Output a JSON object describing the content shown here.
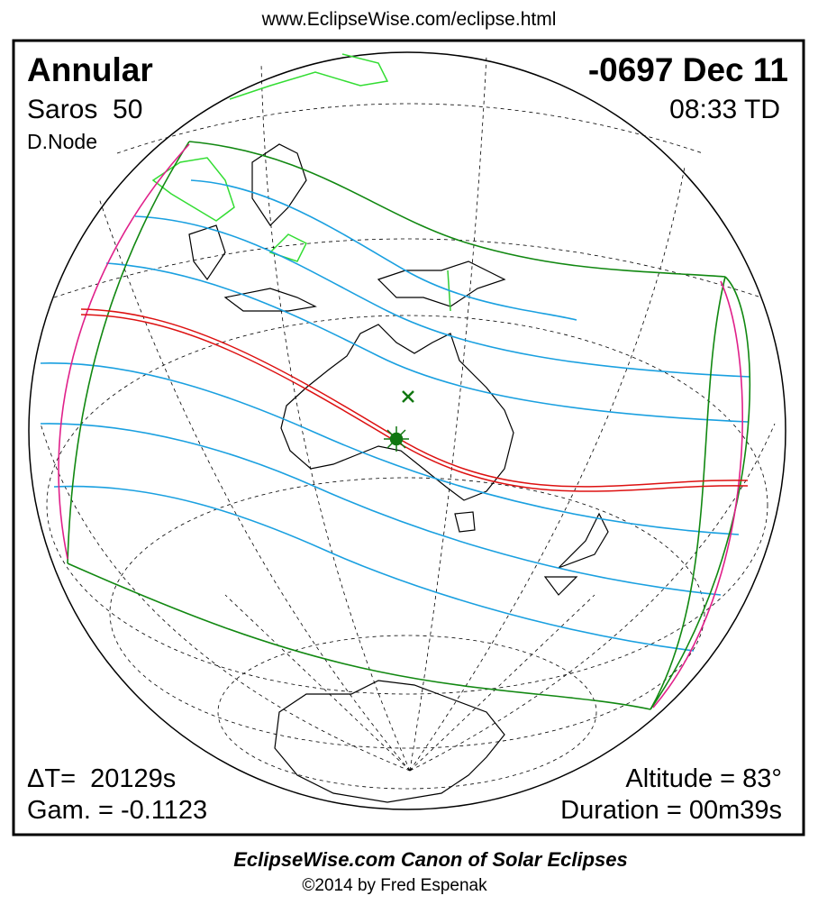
{
  "header": {
    "url": "www.EclipseWise.com/eclipse.html"
  },
  "title": {
    "type": "Annular",
    "saros": "Saros  50",
    "node": "D.Node",
    "date": "-0697 Dec 11",
    "time": "08:33 TD"
  },
  "stats": {
    "delta_t": "ΔT=  20129s",
    "gamma": "Gam. = -0.1123",
    "altitude": "Altitude = 83°",
    "duration": "Duration = 00m39s"
  },
  "footer": {
    "canon": "EclipseWise.com Canon of Solar Eclipses",
    "copyright": "©2014 by Fred Espenak"
  }
}
